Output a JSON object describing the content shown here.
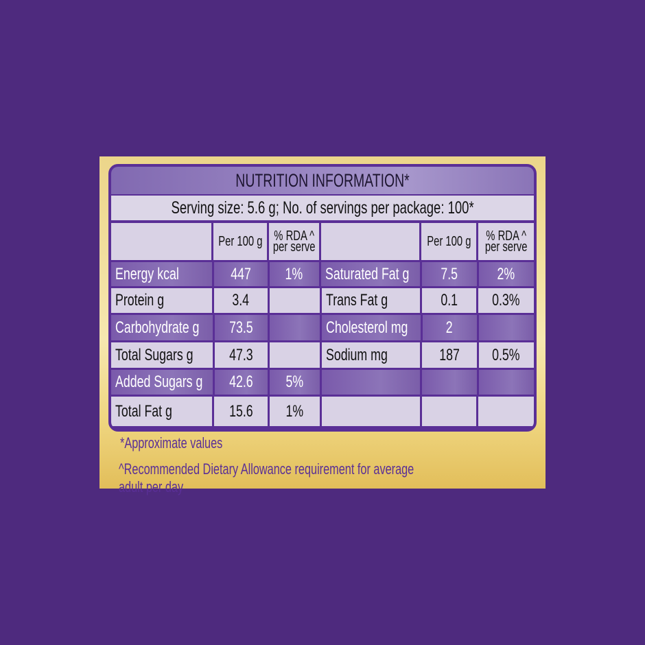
{
  "title": "NUTRITION INFORMATION*",
  "serving": "Serving size: 5.6 g; No. of servings per package: 100*",
  "headers": {
    "per100": "Per 100 g",
    "rda1": "% RDA ^",
    "rda2": "per serve"
  },
  "rows": [
    {
      "l1": "Energy kcal",
      "v1": "447",
      "r1": "1%",
      "l2": "Saturated Fat g",
      "v2": "7.5",
      "r2": "2%"
    },
    {
      "l1": "Protein g",
      "v1": "3.4",
      "r1": "",
      "l2": "Trans Fat g",
      "v2": "0.1",
      "r2": "0.3%"
    },
    {
      "l1": "Carbohydrate g",
      "v1": "73.5",
      "r1": "",
      "l2": "Cholesterol mg",
      "v2": "2",
      "r2": ""
    },
    {
      "l1": "Total Sugars g",
      "v1": "47.3",
      "r1": "",
      "l2": "Sodium mg",
      "v2": "187",
      "r2": "0.5%"
    },
    {
      "l1": "Added Sugars g",
      "v1": "42.6",
      "r1": "5%",
      "l2": "",
      "v2": "",
      "r2": ""
    },
    {
      "l1": "Total Fat g",
      "v1": "15.6",
      "r1": "1%",
      "l2": "",
      "v2": "",
      "r2": ""
    }
  ],
  "footnotes": [
    "*Approximate values",
    "^Recommended Dietary Allowance requirement for average adult per day"
  ],
  "colors": {
    "background": "#4e2a7e",
    "border": "#5a2f96",
    "gold": "#ecd58a",
    "dark_row": "#7a5aab",
    "light_row": "#d9d2e5"
  }
}
